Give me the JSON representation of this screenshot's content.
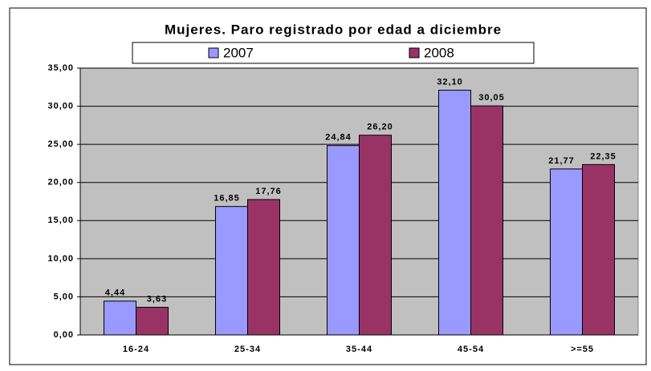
{
  "chart_data": {
    "type": "bar",
    "title": "Mujeres. Paro registrado por edad a diciembre",
    "categories": [
      "16-24",
      "25-34",
      "35-44",
      "45-54",
      ">=55"
    ],
    "series": [
      {
        "name": "2007",
        "color": "#9999ff",
        "values": [
          4.44,
          16.85,
          24.84,
          32.1,
          21.77
        ],
        "value_labels": [
          "4,44",
          "16,85",
          "24,84",
          "32,10",
          "21,77"
        ]
      },
      {
        "name": "2008",
        "color": "#993366",
        "values": [
          3.63,
          17.76,
          26.2,
          30.05,
          22.35
        ],
        "value_labels": [
          "3,63",
          "17,76",
          "26,20",
          "30,05",
          "22,35"
        ]
      }
    ],
    "ylim": [
      0,
      35
    ],
    "yticks": [
      {
        "value": 0,
        "label": "0,00"
      },
      {
        "value": 5,
        "label": "5,00"
      },
      {
        "value": 10,
        "label": "10,00"
      },
      {
        "value": 15,
        "label": "15,00"
      },
      {
        "value": 20,
        "label": "20,00"
      },
      {
        "value": 25,
        "label": "25,00"
      },
      {
        "value": 30,
        "label": "30,00"
      },
      {
        "value": 35,
        "label": "35,00"
      }
    ],
    "grid": true
  }
}
